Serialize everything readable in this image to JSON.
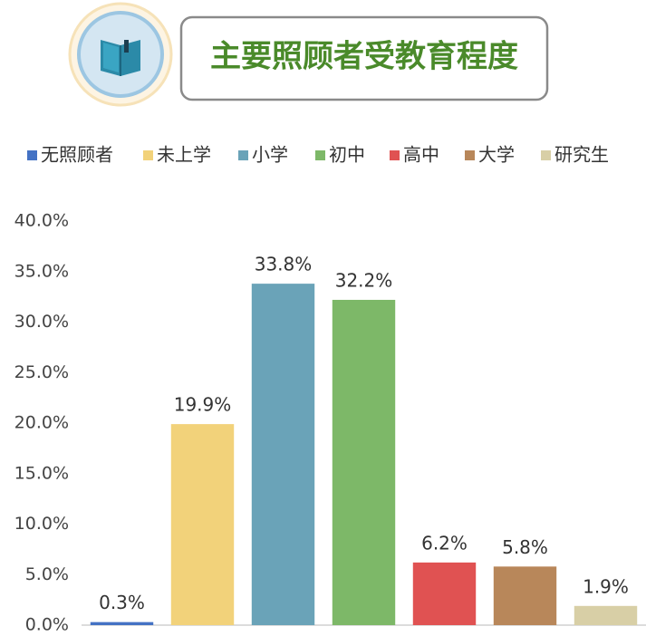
{
  "chart_data": {
    "type": "bar",
    "title": "主要照顾者受教育程度",
    "categories": [
      "无照顾者",
      "未上学",
      "小学",
      "初中",
      "高中",
      "大学",
      "研究生"
    ],
    "values": [
      0.3,
      19.9,
      33.8,
      32.2,
      6.2,
      5.8,
      1.9
    ],
    "value_labels": [
      "0.3%",
      "19.9%",
      "33.8%",
      "32.2%",
      "6.2%",
      "5.8%",
      "1.9%"
    ],
    "colors": [
      "#4472c4",
      "#f2d27a",
      "#6aa3b8",
      "#7db868",
      "#e05252",
      "#b8875a",
      "#d8cfa6"
    ],
    "ylim": [
      0,
      40
    ],
    "yticks": [
      {
        "value": 0,
        "label": "0.0%"
      },
      {
        "value": 5,
        "label": "5.0%"
      },
      {
        "value": 10,
        "label": "10.0%"
      },
      {
        "value": 15,
        "label": "15.0%"
      },
      {
        "value": 20,
        "label": "20.0%"
      },
      {
        "value": 25,
        "label": "25.0%"
      },
      {
        "value": 30,
        "label": "30.0%"
      },
      {
        "value": 35,
        "label": "35.0%"
      },
      {
        "value": 40,
        "label": "40.0%"
      }
    ],
    "grid": false,
    "legend": "top"
  }
}
